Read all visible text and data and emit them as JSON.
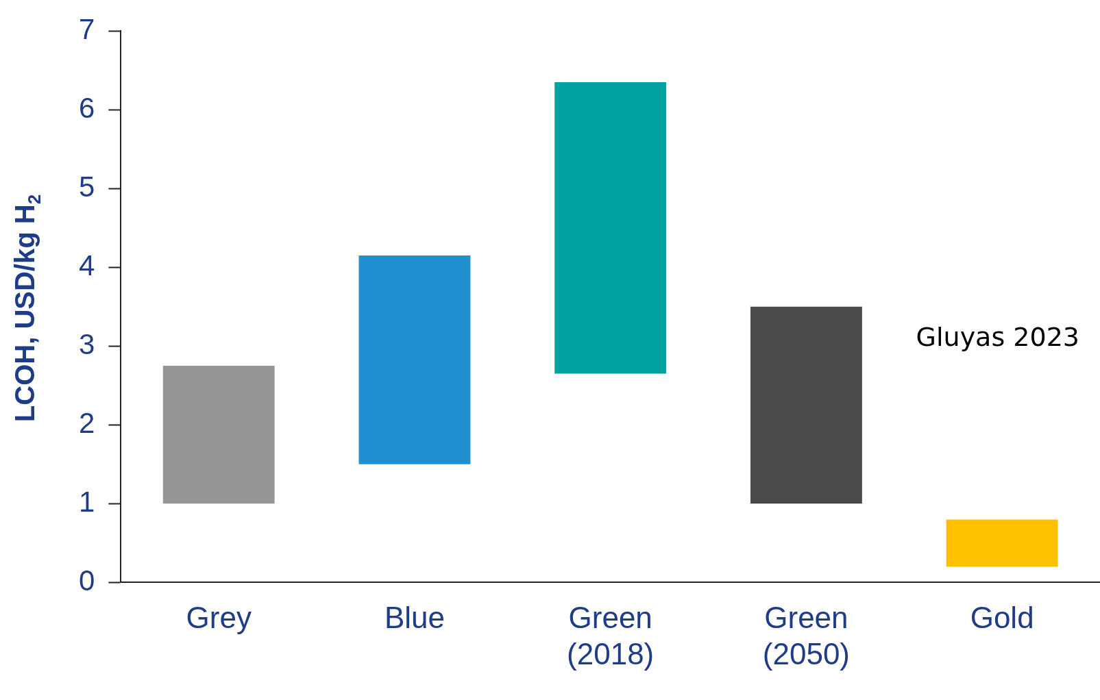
{
  "chart_data": {
    "type": "bar",
    "ylabel": "LCOH, USD/kg H$_{2}$",
    "categories": [
      "Grey",
      "Blue",
      "Green (2018)",
      "Green (2050)",
      "Gold"
    ],
    "base": [
      1.0,
      1.5,
      2.65,
      1.0,
      0.2
    ],
    "values": [
      1.75,
      2.65,
      3.7,
      2.5,
      0.6
    ],
    "colors": [
      "#969696",
      "#2190d0",
      "#00a3a0",
      "#4a4a4a",
      "#ffc000"
    ],
    "ylim": [
      0,
      7
    ],
    "yticks": [
      0,
      1,
      2,
      3,
      4,
      5,
      6,
      7
    ],
    "grid": false,
    "legend": false,
    "annotations": [
      "Gluyas 2023"
    ]
  }
}
